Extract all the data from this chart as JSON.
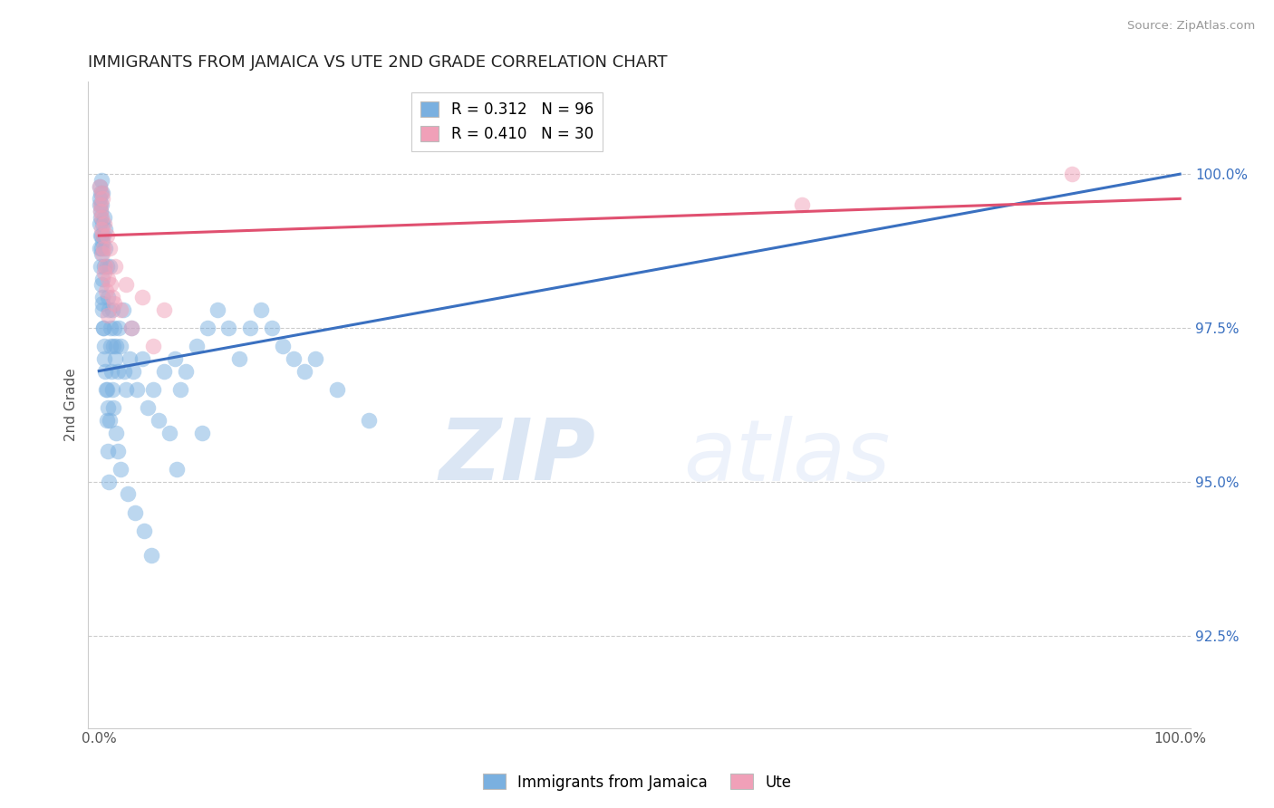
{
  "title": "IMMIGRANTS FROM JAMAICA VS UTE 2ND GRADE CORRELATION CHART",
  "xlabel": "",
  "ylabel": "2nd Grade",
  "source_text": "Source: ZipAtlas.com",
  "watermark_zip": "ZIP",
  "watermark_atlas": "atlas",
  "xlim": [
    -1.0,
    101.0
  ],
  "ylim": [
    91.0,
    101.5
  ],
  "yticks": [
    92.5,
    95.0,
    97.5,
    100.0
  ],
  "ytick_labels": [
    "92.5%",
    "95.0%",
    "97.5%",
    "100.0%"
  ],
  "xticks": [
    0.0,
    100.0
  ],
  "xtick_labels": [
    "0.0%",
    "100.0%"
  ],
  "blue_R": 0.312,
  "blue_N": 96,
  "pink_R": 0.41,
  "pink_N": 30,
  "blue_color": "#7ab0e0",
  "pink_color": "#f0a0b8",
  "blue_line_color": "#3a70c0",
  "pink_line_color": "#e05070",
  "grid_color": "#cccccc",
  "blue_trendline_x": [
    0.0,
    100.0
  ],
  "blue_trendline_y": [
    96.8,
    100.0
  ],
  "pink_trendline_x": [
    0.0,
    100.0
  ],
  "pink_trendline_y": [
    99.0,
    99.6
  ],
  "blue_scatter_x": [
    0.1,
    0.1,
    0.1,
    0.1,
    0.15,
    0.15,
    0.15,
    0.2,
    0.2,
    0.2,
    0.25,
    0.25,
    0.3,
    0.3,
    0.3,
    0.35,
    0.35,
    0.4,
    0.4,
    0.45,
    0.5,
    0.5,
    0.55,
    0.6,
    0.6,
    0.7,
    0.7,
    0.8,
    0.8,
    0.9,
    1.0,
    1.0,
    1.1,
    1.2,
    1.3,
    1.4,
    1.5,
    1.6,
    1.7,
    1.8,
    2.0,
    2.2,
    2.5,
    2.8,
    3.0,
    3.2,
    3.5,
    4.0,
    4.5,
    5.0,
    5.5,
    6.0,
    6.5,
    7.0,
    7.5,
    8.0,
    9.0,
    10.0,
    11.0,
    12.0,
    13.0,
    14.0,
    15.0,
    16.0,
    17.0,
    18.0,
    19.0,
    20.0,
    22.0,
    25.0,
    0.1,
    0.12,
    0.18,
    0.22,
    0.28,
    0.32,
    0.42,
    0.52,
    0.62,
    0.72,
    0.82,
    0.92,
    1.05,
    1.15,
    1.25,
    1.35,
    1.55,
    1.75,
    1.95,
    2.3,
    2.7,
    3.3,
    4.2,
    4.8,
    7.2,
    9.5
  ],
  "blue_scatter_y": [
    99.8,
    99.6,
    99.2,
    98.8,
    99.7,
    99.3,
    98.5,
    99.9,
    99.0,
    98.2,
    99.5,
    98.8,
    99.7,
    98.9,
    98.0,
    99.2,
    97.8,
    99.0,
    97.5,
    98.5,
    99.3,
    97.2,
    98.8,
    99.1,
    96.8,
    98.5,
    96.5,
    98.0,
    96.2,
    97.8,
    98.5,
    96.0,
    97.5,
    97.8,
    97.2,
    97.5,
    97.0,
    97.2,
    96.8,
    97.5,
    97.2,
    97.8,
    96.5,
    97.0,
    97.5,
    96.8,
    96.5,
    97.0,
    96.2,
    96.5,
    96.0,
    96.8,
    95.8,
    97.0,
    96.5,
    96.8,
    97.2,
    97.5,
    97.8,
    97.5,
    97.0,
    97.5,
    97.8,
    97.5,
    97.2,
    97.0,
    96.8,
    97.0,
    96.5,
    96.0,
    99.5,
    99.4,
    99.0,
    98.7,
    98.3,
    97.9,
    97.5,
    97.0,
    96.5,
    96.0,
    95.5,
    95.0,
    97.2,
    96.8,
    96.5,
    96.2,
    95.8,
    95.5,
    95.2,
    96.8,
    94.8,
    94.5,
    94.2,
    93.8,
    95.2,
    95.8
  ],
  "pink_scatter_x": [
    0.1,
    0.15,
    0.2,
    0.25,
    0.3,
    0.35,
    0.4,
    0.5,
    0.6,
    0.7,
    0.8,
    1.0,
    1.2,
    1.5,
    2.0,
    2.5,
    3.0,
    4.0,
    5.0,
    6.0,
    0.12,
    0.22,
    0.32,
    0.45,
    0.65,
    0.85,
    1.1,
    1.4,
    65.0,
    90.0
  ],
  "pink_scatter_y": [
    99.8,
    99.5,
    99.7,
    99.3,
    99.6,
    99.0,
    98.8,
    99.2,
    98.5,
    99.0,
    98.3,
    98.8,
    98.0,
    98.5,
    97.8,
    98.2,
    97.5,
    98.0,
    97.2,
    97.8,
    99.4,
    99.1,
    98.7,
    98.4,
    98.1,
    97.7,
    98.2,
    97.9,
    99.5,
    100.0
  ]
}
